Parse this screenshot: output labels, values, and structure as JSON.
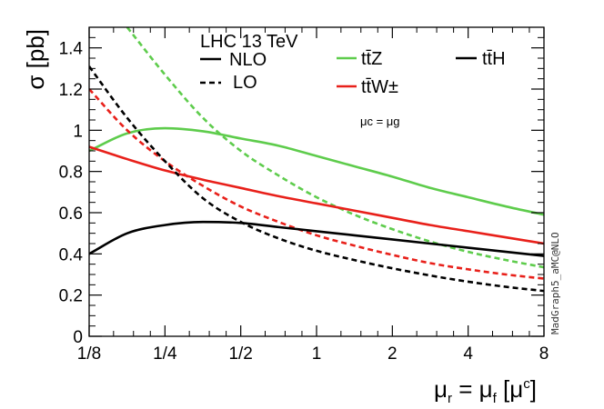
{
  "chart_data": {
    "type": "line",
    "title": "",
    "xlabel": "μr = μf [μc]",
    "ylabel": "σ [pb]",
    "xscale": "log2",
    "xlim": [
      0.125,
      8
    ],
    "ylim": [
      0,
      1.5
    ],
    "x_ticks": [
      {
        "value": 0.125,
        "label": "1/8"
      },
      {
        "value": 0.25,
        "label": "1/4"
      },
      {
        "value": 0.5,
        "label": "1/2"
      },
      {
        "value": 1,
        "label": "1"
      },
      {
        "value": 2,
        "label": "2"
      },
      {
        "value": 4,
        "label": "4"
      },
      {
        "value": 8,
        "label": "8"
      }
    ],
    "y_ticks": [
      {
        "value": 0,
        "label": "0"
      },
      {
        "value": 0.2,
        "label": "0.2"
      },
      {
        "value": 0.4,
        "label": "0.4"
      },
      {
        "value": 0.6,
        "label": "0.6"
      },
      {
        "value": 0.8,
        "label": "0.8"
      },
      {
        "value": 1,
        "label": "1"
      },
      {
        "value": 1.2,
        "label": "1.2"
      },
      {
        "value": 1.4,
        "label": "1.4"
      }
    ],
    "legend": {
      "header": "LHC 13 TeV",
      "styles": [
        {
          "label": "NLO",
          "dash": "solid"
        },
        {
          "label": "LO",
          "dash": "dashed"
        }
      ],
      "processes": [
        {
          "label": "tt̄Z",
          "color": "#5ecc4c"
        },
        {
          "label": "tt̄W±",
          "color": "#e8201a"
        },
        {
          "label": "tt̄H",
          "color": "#000000"
        }
      ],
      "note": "μc = μg"
    },
    "watermark": "MadGraph5_aMC@NLO",
    "series": [
      {
        "name": "tt̄Z NLO",
        "color": "#5ecc4c",
        "dash": "solid",
        "x": [
          0.125,
          0.177,
          0.25,
          0.354,
          0.5,
          0.707,
          1,
          1.414,
          2,
          2.828,
          4,
          5.657,
          8
        ],
        "y": [
          0.9,
          0.985,
          1.01,
          0.995,
          0.96,
          0.925,
          0.875,
          0.825,
          0.775,
          0.72,
          0.675,
          0.63,
          0.59
        ]
      },
      {
        "name": "tt̄Z LO",
        "color": "#5ecc4c",
        "dash": "dashed",
        "x": [
          0.177,
          0.25,
          0.354,
          0.5,
          0.707,
          1,
          1.414,
          2,
          2.828,
          4,
          5.657,
          8
        ],
        "y": [
          1.5,
          1.27,
          1.06,
          0.9,
          0.78,
          0.675,
          0.59,
          0.52,
          0.46,
          0.41,
          0.37,
          0.335
        ]
      },
      {
        "name": "tt̄W± NLO",
        "color": "#e8201a",
        "dash": "solid",
        "x": [
          0.125,
          0.177,
          0.25,
          0.354,
          0.5,
          0.707,
          1,
          1.414,
          2,
          2.828,
          4,
          5.657,
          8
        ],
        "y": [
          0.92,
          0.86,
          0.805,
          0.76,
          0.72,
          0.68,
          0.645,
          0.61,
          0.575,
          0.54,
          0.51,
          0.48,
          0.45
        ]
      },
      {
        "name": "tt̄W± LO",
        "color": "#e8201a",
        "dash": "dashed",
        "x": [
          0.125,
          0.177,
          0.25,
          0.354,
          0.5,
          0.707,
          1,
          1.414,
          2,
          2.828,
          4,
          5.657,
          8
        ],
        "y": [
          1.2,
          1.0,
          0.85,
          0.73,
          0.63,
          0.555,
          0.49,
          0.44,
          0.395,
          0.355,
          0.325,
          0.3,
          0.28
        ]
      },
      {
        "name": "tt̄H NLO",
        "color": "#000000",
        "dash": "solid",
        "x": [
          0.125,
          0.177,
          0.25,
          0.354,
          0.5,
          0.707,
          1,
          1.414,
          2,
          2.828,
          4,
          5.657,
          8
        ],
        "y": [
          0.4,
          0.5,
          0.54,
          0.555,
          0.55,
          0.53,
          0.51,
          0.49,
          0.47,
          0.45,
          0.43,
          0.41,
          0.39
        ]
      },
      {
        "name": "tt̄H LO",
        "color": "#000000",
        "dash": "dashed",
        "x": [
          0.125,
          0.177,
          0.25,
          0.354,
          0.5,
          0.707,
          1,
          1.414,
          2,
          2.828,
          4,
          5.657,
          8
        ],
        "y": [
          1.31,
          1.06,
          0.85,
          0.67,
          0.555,
          0.475,
          0.415,
          0.37,
          0.33,
          0.295,
          0.265,
          0.24,
          0.22
        ]
      }
    ]
  }
}
